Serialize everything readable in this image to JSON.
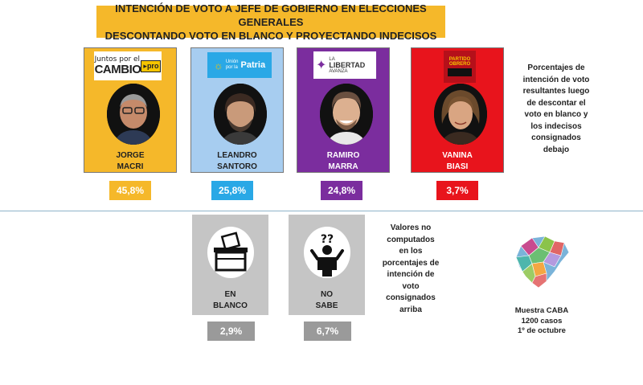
{
  "title": {
    "line1": "INTENCIÓN DE VOTO A JEFE DE GOBIERNO EN ELECCIONES GENERALES",
    "line2": "DESCONTANDO VOTO EN BLANCO Y PROYECTANDO INDECISOS"
  },
  "candidates": [
    {
      "first": "JORGE",
      "last": "MACRI",
      "pct": "45,8%",
      "color": "#f5b82a",
      "logo": {
        "line1": "Juntos por el",
        "line2": "CAMBIO",
        "tag": "pro"
      }
    },
    {
      "first": "LEANDRO",
      "last": "SANTORO",
      "pct": "25,8%",
      "color": "#a7cdf0",
      "pct_color": "#29a8e6",
      "logo": {
        "line1": "Patria"
      }
    },
    {
      "first": "RAMIRO",
      "last": "MARRA",
      "pct": "24,8%",
      "color": "#7b2d9e",
      "logo": {
        "line1": "LA",
        "line2": "LIBERTAD",
        "line3": "AVANZA"
      }
    },
    {
      "first": "VANINA",
      "last": "BIASI",
      "pct": "3,7%",
      "color": "#e8141c",
      "logo": {
        "line1": "PARTIDO",
        "line2": "OBRERO"
      }
    }
  ],
  "side_note_top": [
    "Porcentajes de",
    "intención de voto",
    "resultantes luego",
    "de descontar el",
    "voto en blanco y",
    "los indecisos",
    "consignados",
    "debajo"
  ],
  "excluded": [
    {
      "line1": "EN",
      "line2": "BLANCO",
      "pct": "2,9%",
      "icon": "ballot-box-icon"
    },
    {
      "line1": "NO",
      "line2": "SABE",
      "pct": "6,7%",
      "icon": "question-person-icon"
    }
  ],
  "side_note_bottom": [
    "Valores no",
    "computados",
    "en los",
    "porcentajes de",
    "intención de",
    "voto",
    "consignados",
    "arriba"
  ],
  "sample": [
    "Muestra CABA",
    "1200 casos",
    "1º de octubre"
  ],
  "chart_data": {
    "type": "bar",
    "title": "INTENCIÓN DE VOTO A JEFE DE GOBIERNO EN ELECCIONES GENERALES DESCONTANDO VOTO EN BLANCO Y PROYECTANDO INDECISOS",
    "categories": [
      "JORGE MACRI",
      "LEANDRO SANTORO",
      "RAMIRO MARRA",
      "VANINA BIASI"
    ],
    "values": [
      45.8,
      25.8,
      24.8,
      3.7
    ],
    "excluded_categories": [
      "EN BLANCO",
      "NO SABE"
    ],
    "excluded_values": [
      2.9,
      6.7
    ]
  }
}
